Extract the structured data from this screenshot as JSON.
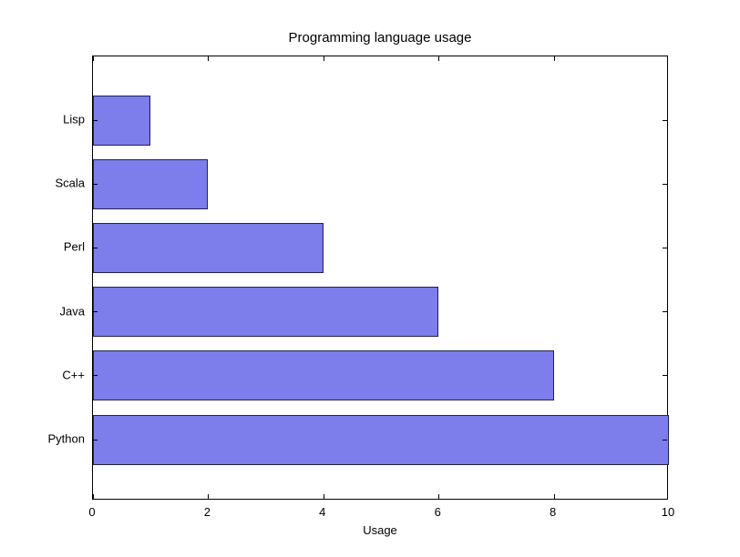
{
  "chart_data": {
    "type": "bar",
    "orientation": "horizontal",
    "title": "Programming language usage",
    "categories": [
      "Lisp",
      "Scala",
      "Perl",
      "Java",
      "C++",
      "Python"
    ],
    "values": [
      1,
      2,
      4,
      6,
      8,
      10
    ],
    "xlabel": "Usage",
    "ylabel": "",
    "xlim": [
      0,
      10
    ],
    "xticks": [
      0,
      2,
      4,
      6,
      8,
      10
    ],
    "grid": false,
    "legend_position": "none",
    "bar_color": "#7d7deb",
    "bar_edge_color": "#22224a",
    "axis_color": "#000000",
    "background_color": "#ffffff"
  }
}
